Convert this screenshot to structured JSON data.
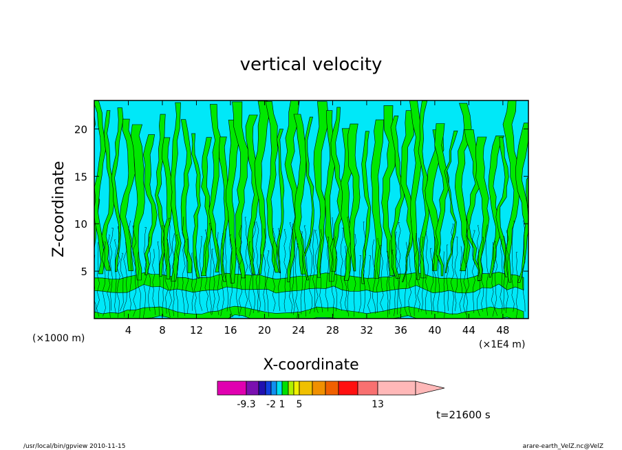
{
  "chart_data": {
    "type": "heatmap",
    "title": "vertical velocity",
    "xlabel": "X-coordinate",
    "ylabel": "Z-coordinate",
    "x_unit_left": "(×1000 m)",
    "x_unit_right": "(×1E4 m)",
    "xlim": [
      0,
      51
    ],
    "ylim": [
      0,
      23
    ],
    "x_ticks": [
      4,
      8,
      12,
      16,
      20,
      24,
      28,
      32,
      36,
      40,
      44,
      48
    ],
    "y_ticks": [
      5,
      10,
      15,
      20
    ],
    "time_label": "t=21600 s",
    "colorbar": {
      "levels": [
        {
          "color": "#e000b0"
        },
        {
          "color": "#7a10b0"
        },
        {
          "color": "#2010b0"
        },
        {
          "color": "#1040e0"
        },
        {
          "color": "#1090f0"
        },
        {
          "color": "#00e0f0"
        },
        {
          "color": "#00e000"
        },
        {
          "color": "#b0f000"
        },
        {
          "color": "#f0f000"
        },
        {
          "color": "#f0c000"
        },
        {
          "color": "#f09000"
        },
        {
          "color": "#f06000"
        },
        {
          "color": "#ff1010"
        },
        {
          "color": "#f87070"
        },
        {
          "color": "#ffb8b8"
        }
      ],
      "tick_labels": [
        {
          "label": "-9.3",
          "index": 0
        },
        {
          "label": "-2",
          "index": 3
        },
        {
          "label": "1",
          "index": 5
        },
        {
          "label": "5",
          "index": 8
        },
        {
          "label": "13",
          "index": 13
        }
      ]
    },
    "field_colors": {
      "negative": "#00e8f8",
      "positive": "#00e800"
    }
  },
  "footer": {
    "left": "/usr/local/bin/gpview  2010-11-15",
    "right": "arare-earth_VelZ.nc@VelZ"
  }
}
